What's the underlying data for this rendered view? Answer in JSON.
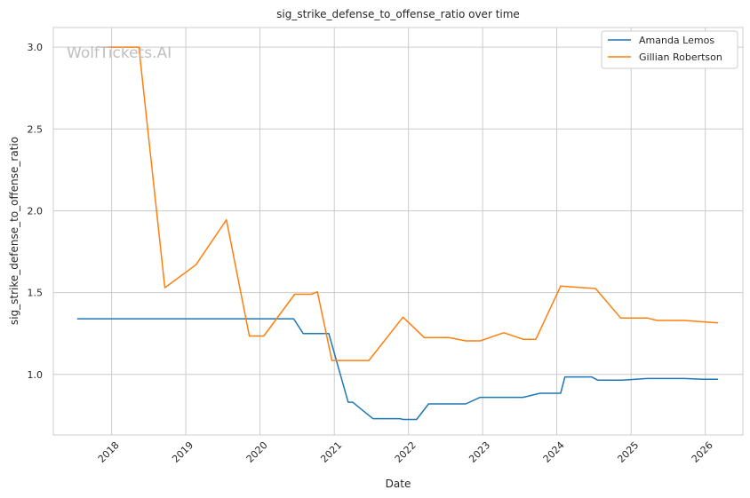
{
  "chart_data": {
    "type": "line",
    "title": "sig_strike_defense_to_offense_ratio over time",
    "xlabel": "Date",
    "ylabel": "sig_strike_defense_to_offense_ratio",
    "watermark": "WolfTickets.AI",
    "x_ticks": [
      "2018",
      "2019",
      "2020",
      "2021",
      "2022",
      "2023",
      "2024",
      "2025",
      "2026"
    ],
    "y_ticks": [
      "1.0",
      "1.5",
      "2.0",
      "2.5",
      "3.0"
    ],
    "xlim": [
      "2017-03-20",
      "2026-07-05"
    ],
    "ylim": [
      0.63,
      3.12
    ],
    "grid": true,
    "legend_position": "top-right",
    "series": [
      {
        "name": "Amanda Lemos",
        "color": "#1f77b4",
        "points": [
          [
            "2017-07-15",
            1.34
          ],
          [
            "2020-06-15",
            1.34
          ],
          [
            "2020-08-01",
            1.25
          ],
          [
            "2020-12-05",
            1.25
          ],
          [
            "2021-03-10",
            0.83
          ],
          [
            "2021-04-01",
            0.83
          ],
          [
            "2021-07-10",
            0.73
          ],
          [
            "2021-11-20",
            0.73
          ],
          [
            "2021-12-05",
            0.725
          ],
          [
            "2022-02-10",
            0.725
          ],
          [
            "2022-04-10",
            0.82
          ],
          [
            "2022-10-10",
            0.82
          ],
          [
            "2022-12-20",
            0.86
          ],
          [
            "2023-07-20",
            0.86
          ],
          [
            "2023-10-10",
            0.885
          ],
          [
            "2024-01-20",
            0.885
          ],
          [
            "2024-02-10",
            0.985
          ],
          [
            "2024-06-20",
            0.985
          ],
          [
            "2024-07-20",
            0.965
          ],
          [
            "2024-11-20",
            0.965
          ],
          [
            "2025-03-20",
            0.975
          ],
          [
            "2025-09-20",
            0.975
          ],
          [
            "2025-12-20",
            0.97
          ],
          [
            "2026-03-05",
            0.97
          ]
        ]
      },
      {
        "name": "Gillian Robertson",
        "color": "#ff7f0e",
        "points": [
          [
            "2017-11-20",
            3.0
          ],
          [
            "2018-05-15",
            3.0
          ],
          [
            "2018-09-20",
            1.53
          ],
          [
            "2019-02-20",
            1.67
          ],
          [
            "2019-07-20",
            1.945
          ],
          [
            "2019-11-10",
            1.235
          ],
          [
            "2020-01-20",
            1.235
          ],
          [
            "2020-06-20",
            1.49
          ],
          [
            "2020-09-10",
            1.49
          ],
          [
            "2020-10-10",
            1.505
          ],
          [
            "2020-12-20",
            1.085
          ],
          [
            "2021-03-10",
            1.085
          ],
          [
            "2021-06-20",
            1.085
          ],
          [
            "2021-12-05",
            1.35
          ],
          [
            "2022-03-20",
            1.225
          ],
          [
            "2022-07-20",
            1.225
          ],
          [
            "2022-10-10",
            1.205
          ],
          [
            "2022-12-20",
            1.205
          ],
          [
            "2023-04-15",
            1.255
          ],
          [
            "2023-07-20",
            1.215
          ],
          [
            "2023-09-20",
            1.215
          ],
          [
            "2024-01-20",
            1.54
          ],
          [
            "2024-07-10",
            1.525
          ],
          [
            "2024-11-10",
            1.345
          ],
          [
            "2025-03-20",
            1.345
          ],
          [
            "2025-05-10",
            1.33
          ],
          [
            "2025-09-20",
            1.33
          ],
          [
            "2026-03-05",
            1.315
          ]
        ]
      }
    ]
  }
}
